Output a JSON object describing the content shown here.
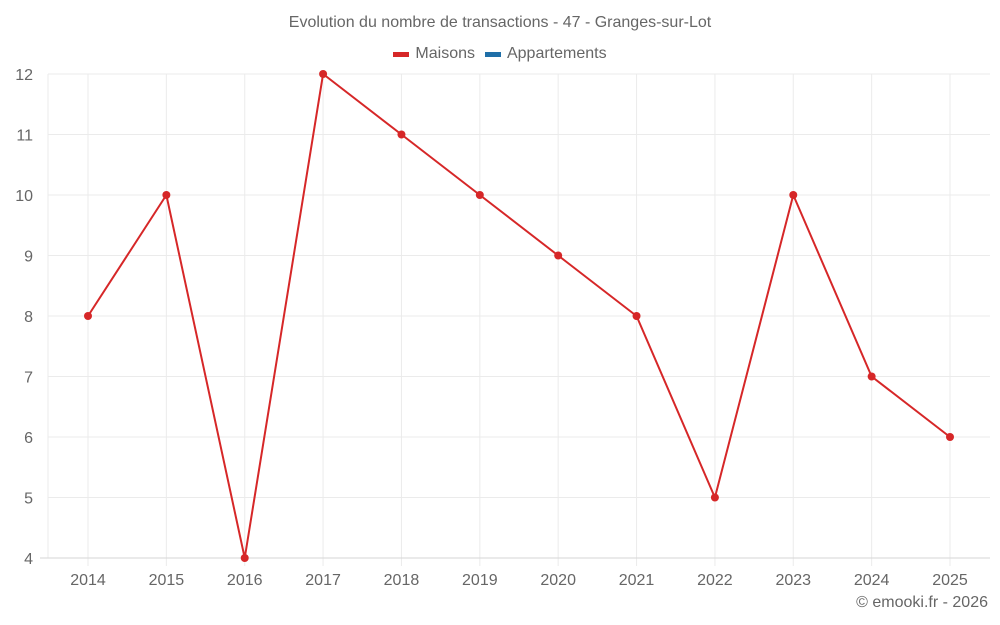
{
  "chart_data": {
    "type": "line",
    "title": "Evolution du nombre de transactions - 47 - Granges-sur-Lot",
    "categories": [
      "2014",
      "2015",
      "2016",
      "2017",
      "2018",
      "2019",
      "2020",
      "2021",
      "2022",
      "2023",
      "2024",
      "2025"
    ],
    "series": [
      {
        "name": "Maisons",
        "color": "#d62728",
        "values": [
          8,
          10,
          4,
          12,
          11,
          10,
          9,
          8,
          5,
          10,
          7,
          6
        ]
      },
      {
        "name": "Appartements",
        "color": "#1f6fa8",
        "values": []
      }
    ],
    "xlabel": "",
    "ylabel": "",
    "ylim": [
      4,
      12
    ],
    "yticks": [
      4,
      5,
      6,
      7,
      8,
      9,
      10,
      11,
      12
    ],
    "grid": true,
    "legend_position": "top"
  },
  "header": {
    "title": "Evolution du nombre de transactions - 47 - Granges-sur-Lot"
  },
  "legend": {
    "items": [
      {
        "label": "Maisons",
        "color": "#d62728"
      },
      {
        "label": "Appartements",
        "color": "#1f6fa8"
      }
    ]
  },
  "footer": {
    "credit": "© emooki.fr - 2026"
  }
}
